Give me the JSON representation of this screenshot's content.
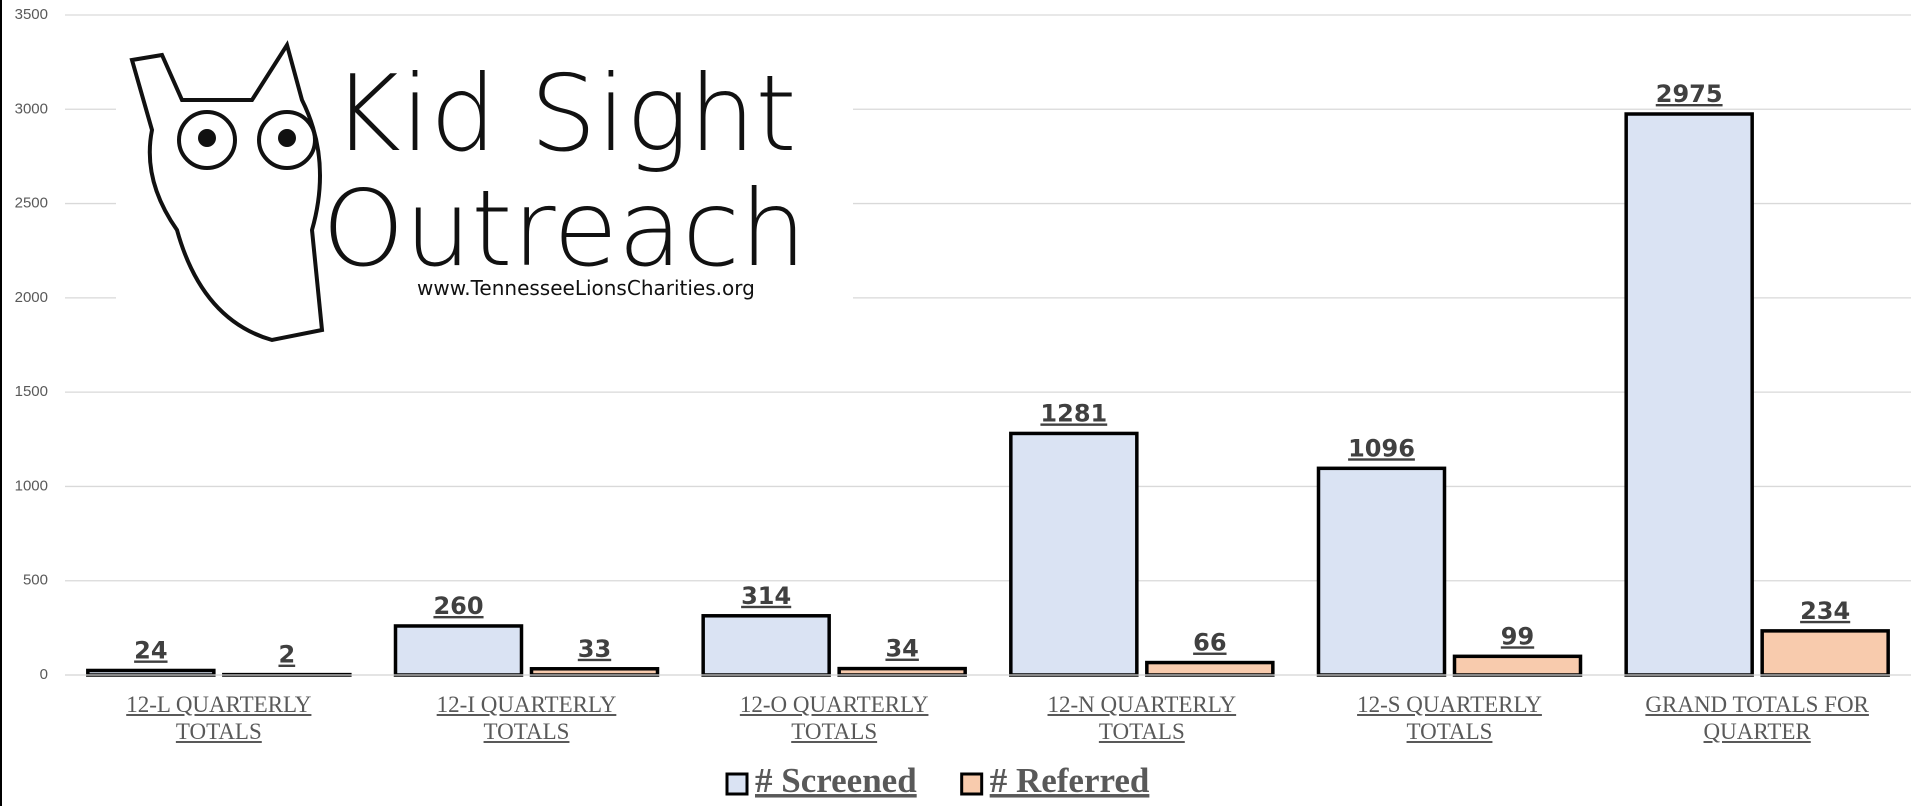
{
  "chart_data": {
    "type": "bar",
    "categories": [
      "12-L QUARTERLY TOTALS",
      "12-I QUARTERLY TOTALS",
      "12-O QUARTERLY TOTALS",
      "12-N QUARTERLY TOTALS",
      "12-S QUARTERLY TOTALS",
      "GRAND TOTALS FOR QUARTER"
    ],
    "series": [
      {
        "name": "# Screened",
        "color": "#dae3f3",
        "values": [
          24,
          260,
          314,
          1281,
          1096,
          2975
        ]
      },
      {
        "name": "# Referred",
        "color": "#f8cbad",
        "values": [
          2,
          33,
          34,
          66,
          99,
          234
        ]
      }
    ],
    "ylim": [
      0,
      3500
    ],
    "yticks": [
      0,
      500,
      1000,
      1500,
      2000,
      2500,
      3000,
      3500
    ],
    "grid": true,
    "legend": "bottom",
    "logo": {
      "line1": "Kid Sight",
      "line2": "Outreach",
      "url": "www.TennesseeLionsCharities.org"
    }
  }
}
